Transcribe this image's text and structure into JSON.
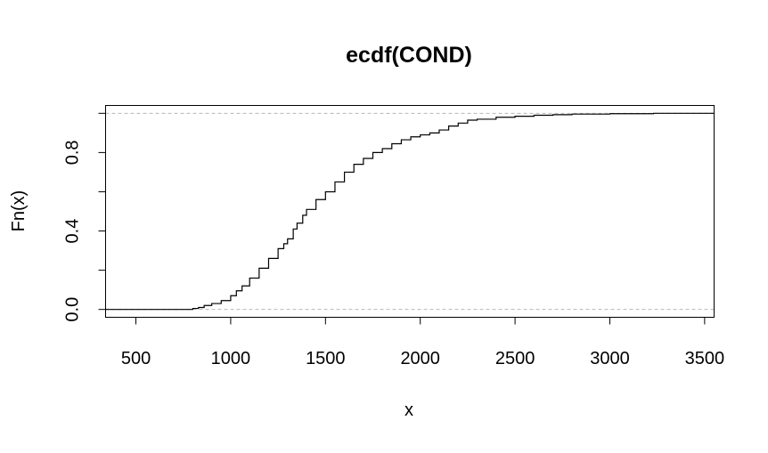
{
  "chart_data": {
    "type": "line",
    "style": "step",
    "title": "ecdf(COND)",
    "xlabel": "x",
    "ylabel": "Fn(x)",
    "xlim": [
      340,
      3550
    ],
    "ylim": [
      -0.04,
      1.04
    ],
    "x_ticks": [
      500,
      1000,
      1500,
      2000,
      2500,
      3000,
      3500
    ],
    "x_tick_labels": [
      "500",
      "1000",
      "1500",
      "2000",
      "2500",
      "3000",
      "3500"
    ],
    "y_ticks": [
      0.0,
      0.2,
      0.4,
      0.6,
      0.8,
      1.0
    ],
    "y_tick_labels": [
      "0.0",
      "",
      "0.4",
      "",
      "0.8",
      ""
    ],
    "reference_lines_y": [
      0,
      1
    ],
    "grid": false,
    "series": [
      {
        "x": [
          640,
          800,
          830,
          860,
          900,
          950,
          1000,
          1030,
          1060,
          1100,
          1150,
          1200,
          1250,
          1280,
          1300,
          1330,
          1350,
          1380,
          1400,
          1450,
          1500,
          1550,
          1600,
          1650,
          1700,
          1750,
          1800,
          1850,
          1900,
          1950,
          2000,
          2050,
          2100,
          2150,
          2200,
          2250,
          2300,
          2400,
          2500,
          2600,
          2700,
          2800,
          3000,
          3230
        ],
        "y": [
          0.0,
          0.005,
          0.01,
          0.02,
          0.03,
          0.045,
          0.07,
          0.095,
          0.12,
          0.16,
          0.21,
          0.26,
          0.31,
          0.335,
          0.36,
          0.41,
          0.44,
          0.48,
          0.51,
          0.56,
          0.6,
          0.65,
          0.7,
          0.74,
          0.77,
          0.8,
          0.82,
          0.845,
          0.865,
          0.88,
          0.89,
          0.9,
          0.915,
          0.935,
          0.95,
          0.965,
          0.97,
          0.98,
          0.985,
          0.99,
          0.993,
          0.996,
          0.998,
          1.0
        ]
      }
    ]
  }
}
